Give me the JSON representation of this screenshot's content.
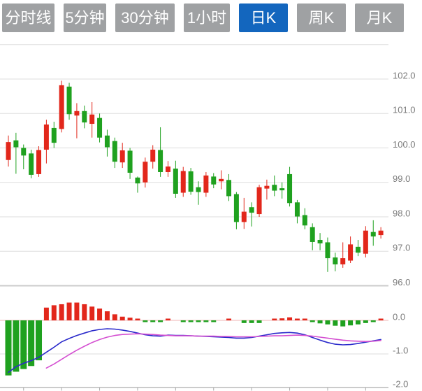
{
  "tabs": [
    {
      "id": "timeline",
      "label": "分时线",
      "active": false
    },
    {
      "id": "5min",
      "label": "5分钟",
      "active": false
    },
    {
      "id": "30min",
      "label": "30分钟",
      "active": false
    },
    {
      "id": "1hour",
      "label": "1小时",
      "active": false
    },
    {
      "id": "daily",
      "label": "日K",
      "active": true
    },
    {
      "id": "weekly",
      "label": "周K",
      "active": false
    },
    {
      "id": "monthly",
      "label": "月K",
      "active": false
    }
  ],
  "colors": {
    "up_candle": "#E2271B",
    "down_candle": "#1FA11F",
    "dif_line": "#2A2ACB",
    "dea_line": "#D44FD1",
    "grid": "#DDDDDD",
    "axis_heavy": "#CBCBCB",
    "zero_line": "#EFB5B5",
    "tick": "#AAAAAA",
    "label": "#7C7C7C",
    "tab_bg": "#9FA1A3",
    "tab_active_bg": "#1366BE",
    "tab_text": "#FFFFFF"
  },
  "chart_data": {
    "type": "candlestick",
    "title": "",
    "grid": true,
    "legend_position": "none",
    "x_tick_every": 5,
    "main_pane": {
      "ylabel": "",
      "y_ticks": [
        "102.0",
        "101.0",
        "100.0",
        "99.0",
        "98.0",
        "97.0",
        "96.0"
      ],
      "y_min": 96.0,
      "y_max": 103.0,
      "ohlc": [
        [
          99.65,
          100.36,
          99.46,
          100.17
        ],
        [
          100.22,
          100.44,
          99.25,
          100.02
        ],
        [
          100.0,
          100.1,
          99.38,
          99.78
        ],
        [
          99.84,
          99.95,
          99.12,
          99.22
        ],
        [
          99.24,
          100.05,
          99.16,
          99.94
        ],
        [
          99.95,
          100.82,
          99.55,
          100.68
        ],
        [
          100.58,
          100.76,
          100.0,
          100.15
        ],
        [
          100.55,
          101.95,
          100.45,
          101.82
        ],
        [
          101.78,
          101.89,
          100.82,
          100.98
        ],
        [
          100.94,
          101.3,
          100.28,
          101.07
        ],
        [
          101.07,
          101.23,
          100.57,
          100.74
        ],
        [
          100.7,
          101.33,
          100.3,
          100.97
        ],
        [
          100.87,
          101.0,
          100.16,
          100.3
        ],
        [
          100.36,
          100.53,
          99.75,
          100.02
        ],
        [
          100.2,
          100.3,
          99.42,
          99.6
        ],
        [
          99.58,
          100.15,
          99.42,
          99.93
        ],
        [
          99.92,
          100.0,
          99.1,
          99.28
        ],
        [
          99.14,
          99.17,
          98.7,
          98.97
        ],
        [
          99.0,
          99.72,
          98.85,
          99.6
        ],
        [
          99.6,
          100.08,
          99.4,
          99.95
        ],
        [
          99.94,
          100.6,
          99.16,
          99.3
        ],
        [
          99.3,
          99.62,
          99.16,
          99.46
        ],
        [
          99.4,
          99.63,
          98.55,
          98.67
        ],
        [
          98.7,
          99.45,
          98.58,
          99.33
        ],
        [
          99.32,
          99.42,
          98.64,
          98.73
        ],
        [
          98.86,
          99.03,
          98.35,
          98.72
        ],
        [
          98.7,
          99.3,
          98.58,
          99.2
        ],
        [
          99.17,
          99.27,
          98.83,
          98.94
        ],
        [
          99.03,
          99.35,
          98.8,
          99.1
        ],
        [
          99.07,
          99.24,
          98.46,
          98.6
        ],
        [
          98.66,
          98.72,
          97.64,
          97.85
        ],
        [
          97.85,
          98.55,
          97.65,
          98.15
        ],
        [
          98.28,
          98.42,
          97.72,
          98.12
        ],
        [
          98.08,
          98.93,
          98.0,
          98.86
        ],
        [
          98.82,
          99.08,
          98.5,
          98.9
        ],
        [
          98.93,
          99.2,
          98.6,
          98.76
        ],
        [
          98.83,
          99.0,
          98.53,
          98.77
        ],
        [
          99.24,
          99.45,
          98.3,
          98.4
        ],
        [
          98.42,
          98.49,
          97.81,
          98.01
        ],
        [
          98.05,
          98.25,
          97.64,
          97.75
        ],
        [
          97.7,
          97.81,
          97.03,
          97.27
        ],
        [
          97.33,
          97.53,
          97.03,
          97.23
        ],
        [
          97.26,
          97.4,
          96.4,
          96.8
        ],
        [
          96.82,
          96.96,
          96.42,
          96.62
        ],
        [
          96.62,
          97.26,
          96.52,
          96.8
        ],
        [
          96.73,
          97.43,
          96.66,
          97.2
        ],
        [
          97.13,
          97.33,
          96.86,
          96.96
        ],
        [
          96.93,
          97.73,
          96.82,
          97.6
        ],
        [
          97.56,
          97.9,
          97.16,
          97.43
        ],
        [
          97.47,
          97.7,
          97.37,
          97.6
        ]
      ]
    },
    "sub_pane": {
      "indicator": "MACD",
      "y_ticks": [
        "0.0",
        "-1.0",
        "-2.0"
      ],
      "y_min": -2.0,
      "y_max": 0.6,
      "histogram": [
        -1.64,
        -1.53,
        -1.45,
        -1.36,
        -1.19,
        0.38,
        0.45,
        0.48,
        0.53,
        0.53,
        0.48,
        0.41,
        0.35,
        0.27,
        0.18,
        0.11,
        0.08,
        0.02,
        -0.02,
        -0.03,
        -0.03,
        0.02,
        0,
        -0.04,
        -0.04,
        -0.04,
        -0.04,
        -0.04,
        0,
        0.02,
        0,
        -0.08,
        -0.08,
        -0.08,
        0,
        0.03,
        0.06,
        0.09,
        0.05,
        0.02,
        -0.05,
        -0.09,
        -0.12,
        -0.16,
        -0.18,
        -0.15,
        -0.12,
        -0.08,
        -0.04,
        0.03
      ],
      "dif": [
        -1.55,
        -1.38,
        -1.28,
        -1.2,
        -1.1,
        -0.95,
        -0.8,
        -0.64,
        -0.54,
        -0.45,
        -0.38,
        -0.31,
        -0.27,
        -0.25,
        -0.26,
        -0.29,
        -0.33,
        -0.38,
        -0.43,
        -0.46,
        -0.47,
        -0.44,
        -0.45,
        -0.45,
        -0.46,
        -0.47,
        -0.48,
        -0.49,
        -0.5,
        -0.51,
        -0.53,
        -0.53,
        -0.51,
        -0.47,
        -0.43,
        -0.39,
        -0.37,
        -0.36,
        -0.38,
        -0.43,
        -0.51,
        -0.59,
        -0.66,
        -0.71,
        -0.73,
        -0.72,
        -0.69,
        -0.65,
        -0.61,
        -0.57
      ],
      "dea": [
        null,
        null,
        null,
        null,
        null,
        -1.42,
        -1.3,
        -1.16,
        -1.02,
        -0.89,
        -0.77,
        -0.66,
        -0.57,
        -0.5,
        -0.45,
        -0.42,
        -0.41,
        -0.4,
        -0.41,
        -0.42,
        -0.44,
        -0.45,
        -0.46,
        -0.46,
        -0.46,
        -0.47,
        -0.47,
        -0.47,
        -0.48,
        -0.48,
        -0.49,
        -0.49,
        -0.49,
        -0.48,
        -0.47,
        -0.46,
        -0.46,
        -0.45,
        -0.44,
        -0.45,
        -0.47,
        -0.5,
        -0.53,
        -0.56,
        -0.59,
        -0.61,
        -0.62,
        -0.63,
        -0.62,
        -0.6
      ]
    }
  }
}
